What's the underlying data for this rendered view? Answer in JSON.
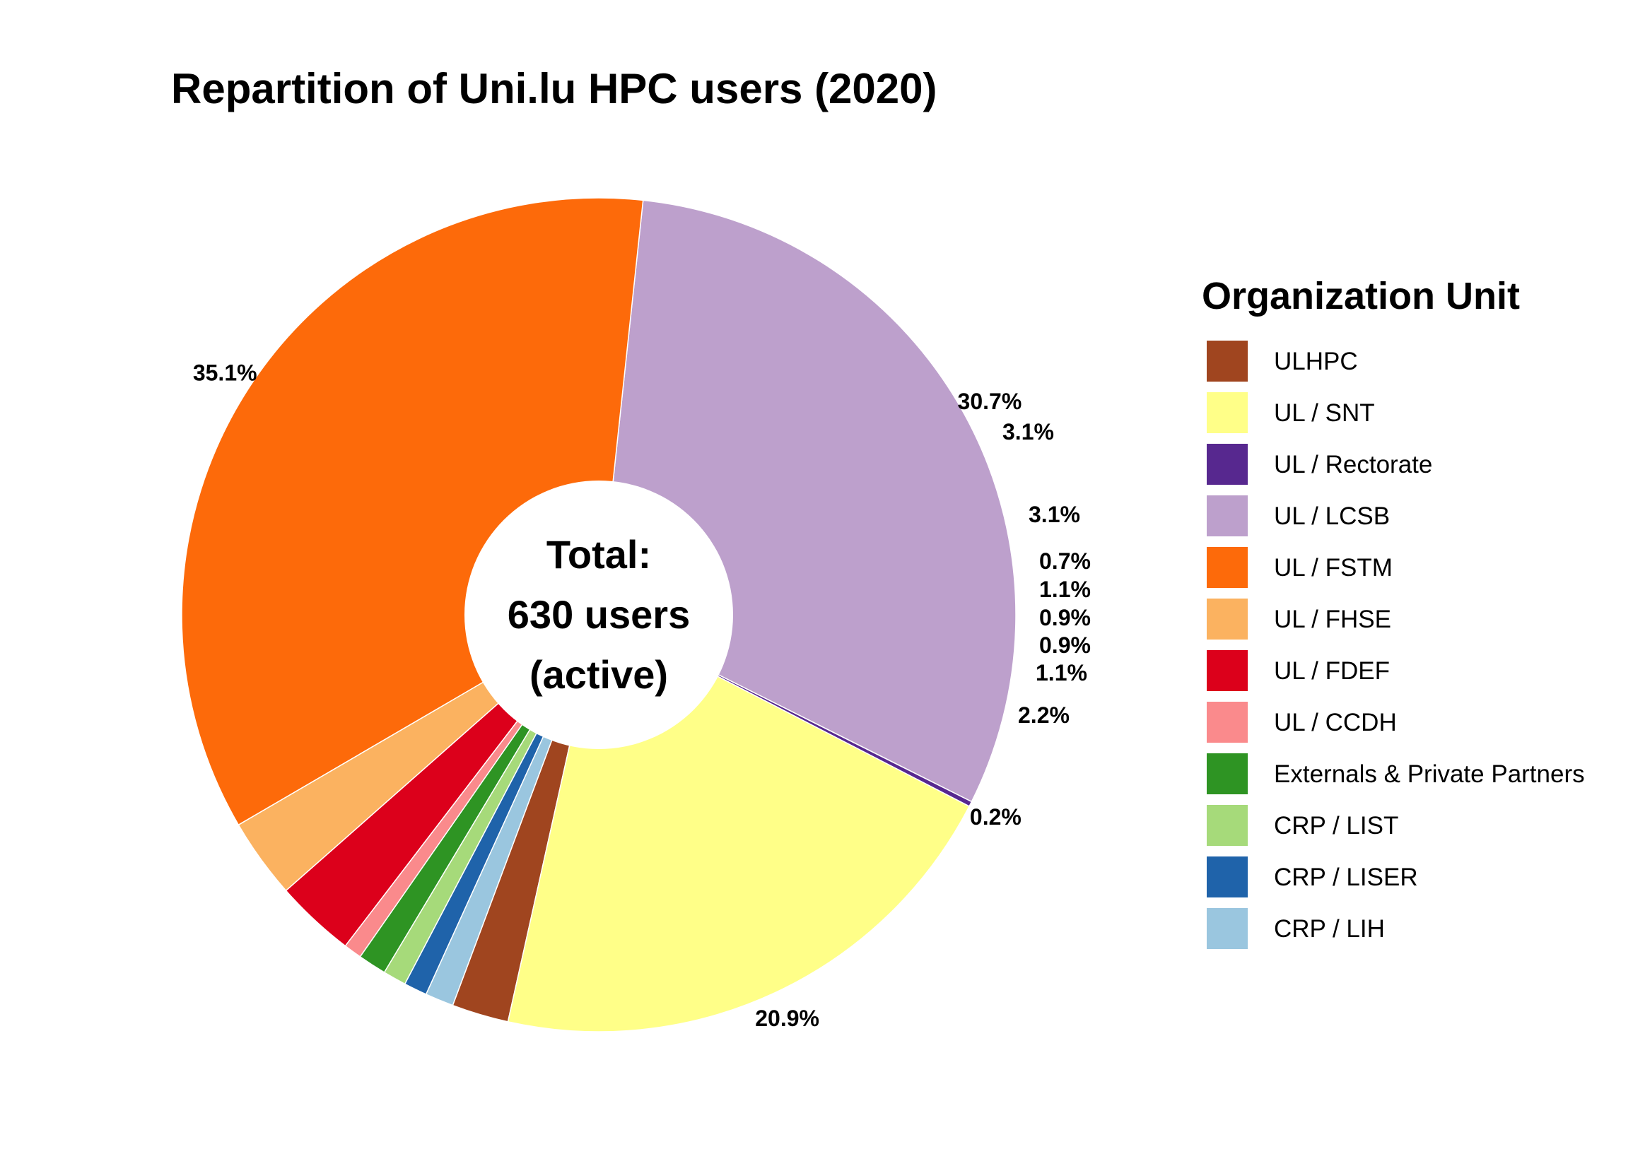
{
  "chart_data": {
    "type": "pie",
    "title": "Repartition of Uni.lu HPC users (2020)",
    "center_text": [
      "Total:",
      "630 users",
      "(active)"
    ],
    "legend": {
      "title": "Organization Unit",
      "placement": "right"
    },
    "slices": [
      {
        "label": "ULHPC",
        "value": 2.2,
        "value_label": "2.2%",
        "color": "#A0451F"
      },
      {
        "label": "UL / SNT",
        "value": 20.9,
        "value_label": "20.9%",
        "color": "#FFFF88"
      },
      {
        "label": "UL / Rectorate",
        "value": 0.2,
        "value_label": "0.2%",
        "color": "#57288F"
      },
      {
        "label": "UL / LCSB",
        "value": 30.7,
        "value_label": "30.7%",
        "color": "#BDA0CC"
      },
      {
        "label": "UL / FSTM",
        "value": 35.1,
        "value_label": "35.1%",
        "color": "#FD6A0A"
      },
      {
        "label": "UL / FHSE",
        "value": 3.1,
        "value_label": "3.1%",
        "color": "#FBB260"
      },
      {
        "label": "UL / FDEF",
        "value": 3.1,
        "value_label": "3.1%",
        "color": "#DC001B"
      },
      {
        "label": "UL / CCDH",
        "value": 0.7,
        "value_label": "0.7%",
        "color": "#FA8A8C"
      },
      {
        "label": "Externals & Private Partners",
        "value": 1.1,
        "value_label": "1.1%",
        "color": "#2E9423"
      },
      {
        "label": "CRP / LIST",
        "value": 0.9,
        "value_label": "0.9%",
        "color": "#A6DA7A"
      },
      {
        "label": "CRP / LISER",
        "value": 0.9,
        "value_label": "0.9%",
        "color": "#1F63AA"
      },
      {
        "label": "CRP / LIH",
        "value": 1.1,
        "value_label": "1.1%",
        "color": "#9AC6DF"
      }
    ]
  }
}
